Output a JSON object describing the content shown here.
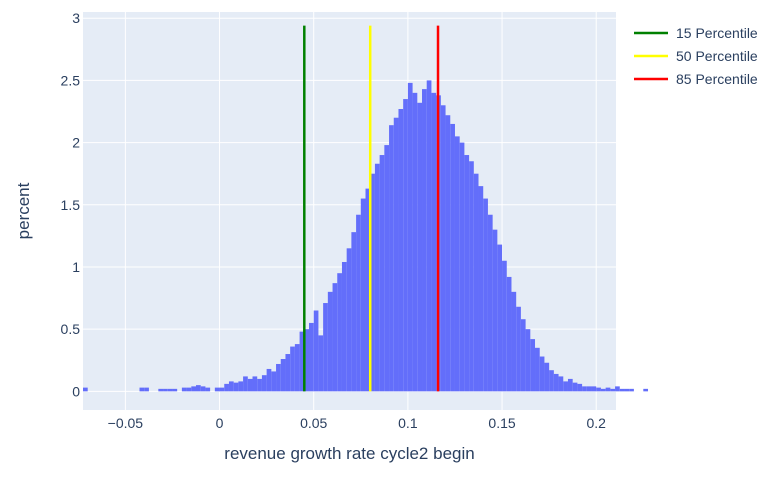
{
  "chart_data": {
    "type": "histogram",
    "xlabel": "revenue growth rate cycle2 begin",
    "ylabel": "percent",
    "xlim": [
      -0.0725,
      0.2105
    ],
    "ylim": [
      -0.15,
      3.05
    ],
    "x_ticks": [
      -0.05,
      0,
      0.05,
      0.1,
      0.15,
      0.2
    ],
    "x_tick_labels": [
      "−0.05",
      "0",
      "0.05",
      "0.1",
      "0.15",
      "0.2"
    ],
    "y_ticks": [
      0,
      0.5,
      1,
      1.5,
      2,
      2.5,
      3
    ],
    "y_tick_labels": [
      "0",
      "0.5",
      "1",
      "1.5",
      "2",
      "2.5",
      "3"
    ],
    "grid": true,
    "legend_position": "top-right",
    "bin_start": -0.0725,
    "bin_width": 0.0025,
    "bar_color": "#636efa",
    "bin_percents": [
      0.03,
      0,
      0,
      0,
      0,
      0,
      0,
      0,
      0,
      0,
      0,
      0,
      0.03,
      0.03,
      0,
      0,
      0.02,
      0.02,
      0.02,
      0.02,
      0,
      0.03,
      0.03,
      0.04,
      0.05,
      0.04,
      0.03,
      0,
      0.03,
      0.03,
      0.06,
      0.08,
      0.07,
      0.08,
      0.12,
      0.1,
      0.12,
      0.1,
      0.13,
      0.18,
      0.16,
      0.22,
      0.26,
      0.3,
      0.36,
      0.38,
      0.48,
      0.5,
      0.55,
      0.65,
      0.45,
      0.71,
      0.8,
      0.87,
      0.95,
      1.04,
      1.15,
      1.28,
      1.42,
      1.55,
      1.63,
      1.75,
      1.83,
      1.9,
      1.98,
      2.14,
      2.2,
      2.27,
      2.35,
      2.48,
      2.4,
      2.32,
      2.43,
      2.5,
      2.4,
      2.38,
      2.3,
      2.22,
      2.15,
      2.05,
      2.0,
      1.9,
      1.85,
      1.75,
      1.65,
      1.55,
      1.42,
      1.3,
      1.18,
      1.05,
      0.92,
      0.8,
      0.68,
      0.58,
      0.5,
      0.42,
      0.35,
      0.28,
      0.23,
      0.17,
      0.14,
      0.12,
      0.08,
      0.1,
      0.07,
      0.06,
      0.04,
      0.04,
      0.04,
      0.03,
      0.02,
      0.03,
      0.02,
      0.04,
      0.02,
      0.02,
      0.02,
      0,
      0,
      0.02
    ],
    "series": [
      {
        "name": "15 Percentile",
        "x": 0.045,
        "y_top": 2.94,
        "color": "#008000"
      },
      {
        "name": "50 Percentile",
        "x": 0.08,
        "y_top": 2.94,
        "color": "#ffff00"
      },
      {
        "name": "85 Percentile",
        "x": 0.116,
        "y_top": 2.94,
        "color": "#ff0000"
      }
    ]
  }
}
